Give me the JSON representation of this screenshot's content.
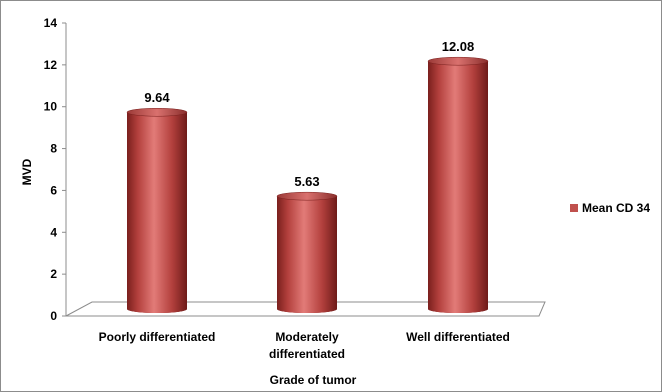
{
  "chart_data": {
    "type": "bar",
    "categories": [
      "Poorly differentiated",
      "Moderately differentiated",
      "Well differentiated"
    ],
    "category_lines": [
      [
        "Poorly differentiated"
      ],
      [
        "Moderately",
        "differentiated"
      ],
      [
        "Well differentiated"
      ]
    ],
    "series": [
      {
        "name": "Mean CD 34",
        "values": [
          9.64,
          5.63,
          12.08
        ],
        "color": "#c0504d"
      }
    ],
    "data_labels": [
      "9.64",
      "5.63",
      "12.08"
    ],
    "xlabel": "Grade of tumor",
    "ylabel": "MVD",
    "ylim": [
      0,
      14
    ],
    "yticks": [
      0,
      2,
      4,
      6,
      8,
      10,
      12,
      14
    ],
    "grid": false,
    "legend": {
      "position": "right",
      "entries": [
        "Mean CD 34"
      ]
    },
    "bar_style": "3d-cylinder"
  }
}
